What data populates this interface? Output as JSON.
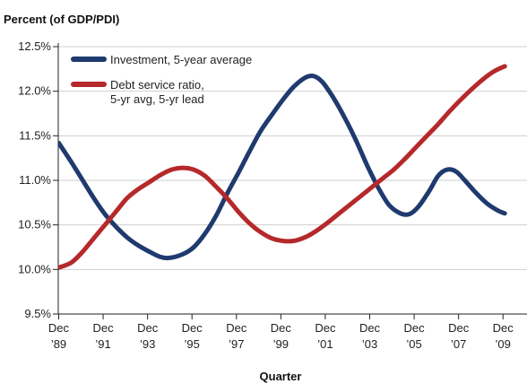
{
  "chart_data": {
    "type": "line",
    "ylabel": "Percent (of GDP/PDI)",
    "xlabel": "Quarter",
    "ylim": [
      9.5,
      12.5
    ],
    "xlim": [
      1989.9,
      2011.0
    ],
    "grid": "horizontal",
    "legend_placement": "top-left",
    "y_ticks": [
      "12.5%",
      "12.0%",
      "11.5%",
      "11.0%",
      "10.5%",
      "10.0%",
      "9.5%"
    ],
    "x_ticks": [
      {
        "x": 1989.92,
        "top": "Dec",
        "bottom": "’89"
      },
      {
        "x": 1991.92,
        "top": "Dec",
        "bottom": "’91"
      },
      {
        "x": 1993.92,
        "top": "Dec",
        "bottom": "’93"
      },
      {
        "x": 1995.92,
        "top": "Dec",
        "bottom": "’95"
      },
      {
        "x": 1997.92,
        "top": "Dec",
        "bottom": "’97"
      },
      {
        "x": 1999.92,
        "top": "Dec",
        "bottom": "’99"
      },
      {
        "x": 2001.92,
        "top": "Dec",
        "bottom": "’01"
      },
      {
        "x": 2003.92,
        "top": "Dec",
        "bottom": "’03"
      },
      {
        "x": 2005.92,
        "top": "Dec",
        "bottom": "’05"
      },
      {
        "x": 2007.92,
        "top": "Dec",
        "bottom": "’07"
      },
      {
        "x": 2009.92,
        "top": "Dec",
        "bottom": "’09"
      }
    ],
    "series": [
      {
        "name": "Investment, 5-year average",
        "color": "#1f3a6e",
        "points": [
          [
            1989.92,
            11.42
          ],
          [
            1990.5,
            11.2
          ],
          [
            1991.0,
            11.0
          ],
          [
            1991.5,
            10.8
          ],
          [
            1992.0,
            10.62
          ],
          [
            1992.5,
            10.48
          ],
          [
            1993.0,
            10.36
          ],
          [
            1993.5,
            10.27
          ],
          [
            1994.0,
            10.2
          ],
          [
            1994.5,
            10.14
          ],
          [
            1994.92,
            10.13
          ],
          [
            1995.5,
            10.17
          ],
          [
            1996.0,
            10.25
          ],
          [
            1996.5,
            10.4
          ],
          [
            1997.0,
            10.6
          ],
          [
            1997.5,
            10.85
          ],
          [
            1998.0,
            11.08
          ],
          [
            1998.5,
            11.32
          ],
          [
            1999.0,
            11.55
          ],
          [
            1999.5,
            11.73
          ],
          [
            2000.0,
            11.9
          ],
          [
            2000.5,
            12.05
          ],
          [
            2001.0,
            12.15
          ],
          [
            2001.4,
            12.17
          ],
          [
            2001.8,
            12.1
          ],
          [
            2002.3,
            11.92
          ],
          [
            2002.8,
            11.7
          ],
          [
            2003.3,
            11.45
          ],
          [
            2003.8,
            11.17
          ],
          [
            2004.3,
            10.92
          ],
          [
            2004.8,
            10.72
          ],
          [
            2005.3,
            10.63
          ],
          [
            2005.7,
            10.62
          ],
          [
            2006.1,
            10.7
          ],
          [
            2006.6,
            10.88
          ],
          [
            2007.0,
            11.05
          ],
          [
            2007.4,
            11.12
          ],
          [
            2007.8,
            11.1
          ],
          [
            2008.2,
            11.0
          ],
          [
            2008.7,
            10.86
          ],
          [
            2009.2,
            10.74
          ],
          [
            2009.7,
            10.66
          ],
          [
            2010.0,
            10.63
          ]
        ]
      },
      {
        "name": "Debt service ratio, 5-yr avg, 5-yr lead",
        "color": "#b5292b",
        "points": [
          [
            1989.92,
            10.02
          ],
          [
            1990.5,
            10.08
          ],
          [
            1991.0,
            10.2
          ],
          [
            1991.5,
            10.35
          ],
          [
            1992.0,
            10.5
          ],
          [
            1992.5,
            10.65
          ],
          [
            1993.0,
            10.8
          ],
          [
            1993.5,
            10.9
          ],
          [
            1994.0,
            10.98
          ],
          [
            1994.5,
            11.06
          ],
          [
            1995.0,
            11.12
          ],
          [
            1995.5,
            11.14
          ],
          [
            1996.0,
            11.12
          ],
          [
            1996.5,
            11.05
          ],
          [
            1997.0,
            10.93
          ],
          [
            1997.5,
            10.8
          ],
          [
            1998.0,
            10.65
          ],
          [
            1998.5,
            10.52
          ],
          [
            1999.0,
            10.42
          ],
          [
            1999.5,
            10.35
          ],
          [
            2000.0,
            10.32
          ],
          [
            2000.5,
            10.32
          ],
          [
            2001.0,
            10.36
          ],
          [
            2001.5,
            10.43
          ],
          [
            2002.0,
            10.52
          ],
          [
            2002.5,
            10.62
          ],
          [
            2003.0,
            10.72
          ],
          [
            2003.5,
            10.82
          ],
          [
            2004.0,
            10.92
          ],
          [
            2004.5,
            11.02
          ],
          [
            2005.0,
            11.12
          ],
          [
            2005.5,
            11.24
          ],
          [
            2006.0,
            11.37
          ],
          [
            2006.5,
            11.5
          ],
          [
            2007.0,
            11.63
          ],
          [
            2007.5,
            11.77
          ],
          [
            2008.0,
            11.9
          ],
          [
            2008.5,
            12.02
          ],
          [
            2009.0,
            12.13
          ],
          [
            2009.5,
            12.22
          ],
          [
            2010.0,
            12.28
          ]
        ]
      }
    ],
    "legend": [
      {
        "label_lines": [
          "Investment, 5-year average"
        ],
        "color": "#1f3a6e"
      },
      {
        "label_lines": [
          "Debt service ratio,",
          "5-yr avg, 5-yr lead"
        ],
        "color": "#b5292b"
      }
    ]
  }
}
